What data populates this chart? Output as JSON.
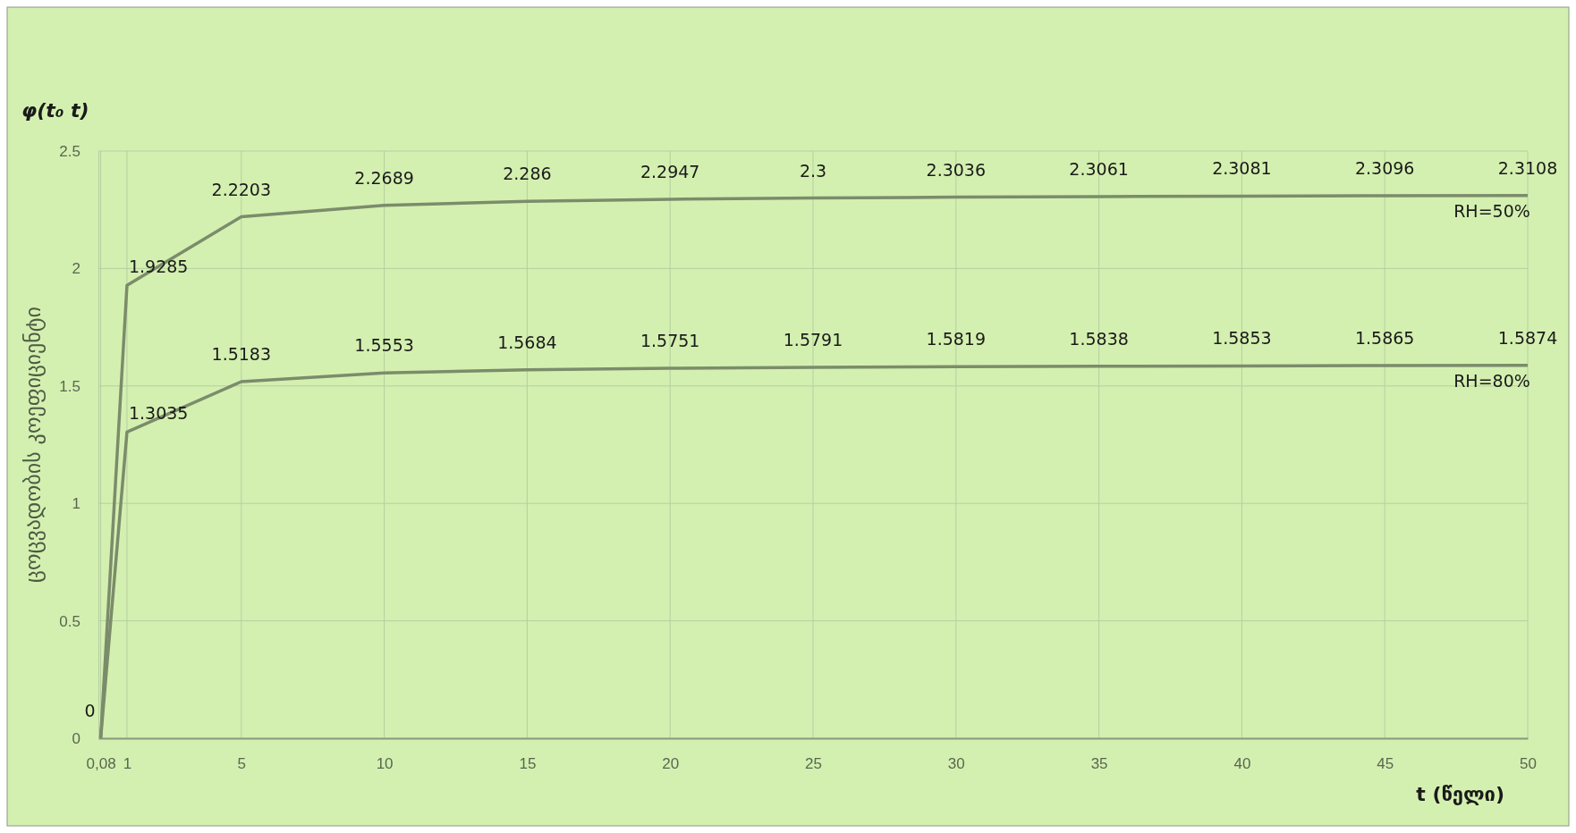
{
  "chart_data": {
    "type": "line",
    "ylabel": "ცოცვადობის კოეფიციენტი",
    "y2label": "φ(t₀ t)",
    "xlabel": "t (წელი)",
    "x": [
      0.08,
      1,
      5,
      10,
      15,
      20,
      25,
      30,
      35,
      40,
      45,
      50
    ],
    "series": [
      {
        "name": "RH=50%",
        "color": "#7b8c6b",
        "values": [
          0,
          1.9285,
          2.2203,
          2.2689,
          2.286,
          2.2947,
          2.3,
          2.3036,
          2.3061,
          2.3081,
          2.3096,
          2.3108
        ],
        "value_labels": [
          "0",
          "1.9285",
          "2.2203",
          "2.2689",
          "2.286",
          "2.2947",
          "2.3",
          "2.3036",
          "2.3061",
          "2.3081",
          "2.3096",
          "2.3108"
        ]
      },
      {
        "name": "RH=80%",
        "color": "#7b8c6b",
        "values": [
          0,
          1.3035,
          1.5183,
          1.5553,
          1.5684,
          1.5751,
          1.5791,
          1.5819,
          1.5838,
          1.5853,
          1.5865,
          1.5874
        ],
        "value_labels": [
          null,
          "1.3035",
          "1.5183",
          "1.5553",
          "1.5684",
          "1.5751",
          "1.5791",
          "1.5819",
          "1.5838",
          "1.5853",
          "1.5865",
          "1.5874"
        ]
      }
    ],
    "xlim": [
      0,
      50
    ],
    "xticks": [
      {
        "value": 0.08,
        "label": "0,08"
      },
      1,
      5,
      10,
      15,
      20,
      25,
      30,
      35,
      40,
      45,
      50
    ],
    "ylim": [
      0,
      2.5
    ],
    "yticks": [
      0,
      0.5,
      1,
      1.5,
      2,
      2.5
    ],
    "grid": true,
    "line_style": "solid",
    "marker": "none"
  }
}
